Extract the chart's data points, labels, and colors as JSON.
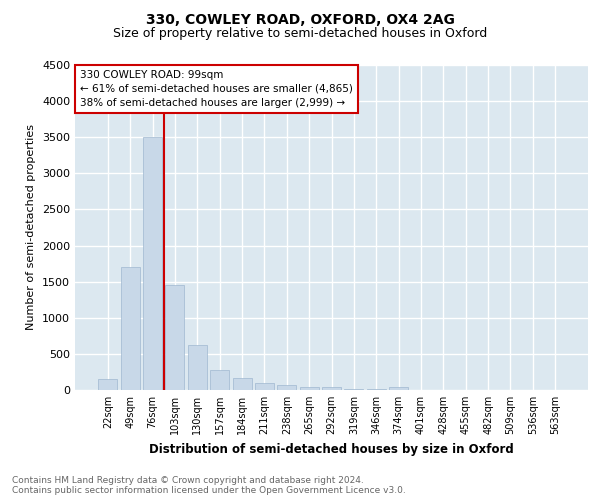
{
  "title": "330, COWLEY ROAD, OXFORD, OX4 2AG",
  "subtitle": "Size of property relative to semi-detached houses in Oxford",
  "xlabel": "Distribution of semi-detached houses by size in Oxford",
  "ylabel": "Number of semi-detached properties",
  "annotation_line1": "330 COWLEY ROAD: 99sqm",
  "annotation_line2": "← 61% of semi-detached houses are smaller (4,865)",
  "annotation_line3": "38% of semi-detached houses are larger (2,999) →",
  "bar_color": "#c8d8e8",
  "bar_edgecolor": "#a0b8d0",
  "vline_color": "#cc0000",
  "annotation_box_edgecolor": "#cc0000",
  "background_color": "#dce8f0",
  "grid_color": "#ffffff",
  "footer_text": "Contains HM Land Registry data © Crown copyright and database right 2024.\nContains public sector information licensed under the Open Government Licence v3.0.",
  "categories": [
    "22sqm",
    "49sqm",
    "76sqm",
    "103sqm",
    "130sqm",
    "157sqm",
    "184sqm",
    "211sqm",
    "238sqm",
    "265sqm",
    "292sqm",
    "319sqm",
    "346sqm",
    "374sqm",
    "401sqm",
    "428sqm",
    "455sqm",
    "482sqm",
    "509sqm",
    "536sqm",
    "563sqm"
  ],
  "values": [
    150,
    1700,
    3500,
    1450,
    625,
    275,
    160,
    95,
    65,
    45,
    35,
    20,
    15,
    45,
    5,
    5,
    3,
    2,
    2,
    2,
    2
  ],
  "ylim": [
    0,
    4500
  ],
  "yticks": [
    0,
    500,
    1000,
    1500,
    2000,
    2500,
    3000,
    3500,
    4000,
    4500
  ],
  "vline_x": 2.5
}
